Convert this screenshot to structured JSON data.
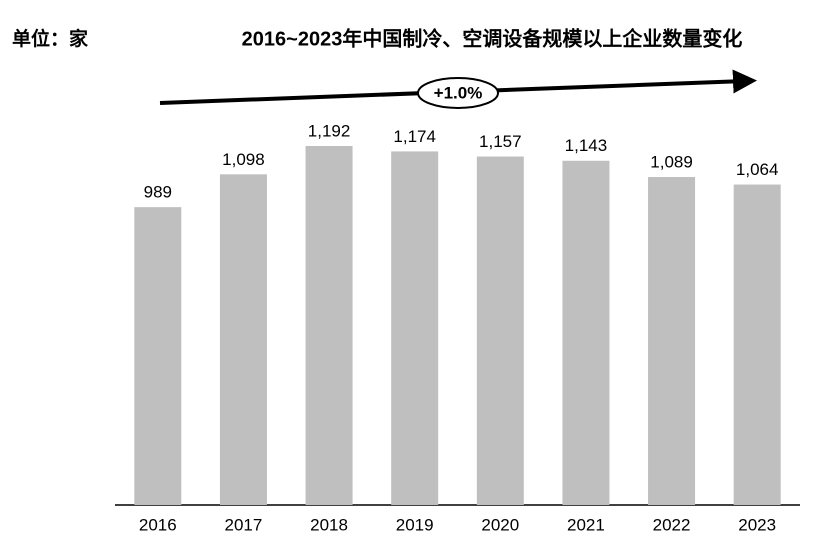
{
  "chart_data": {
    "type": "bar",
    "title": "2016~2023年中国制冷、空调设备规模以上企业数量变化",
    "unit_label": "单位：家",
    "annotation": "+1.0%",
    "categories": [
      "2016",
      "2017",
      "2018",
      "2019",
      "2020",
      "2021",
      "2022",
      "2023"
    ],
    "values": [
      989,
      1098,
      1192,
      1174,
      1157,
      1143,
      1089,
      1064
    ],
    "value_labels": [
      "989",
      "1,098",
      "1,192",
      "1,174",
      "1,157",
      "1,143",
      "1,089",
      "1,064"
    ],
    "color": "#bfbfbf"
  }
}
